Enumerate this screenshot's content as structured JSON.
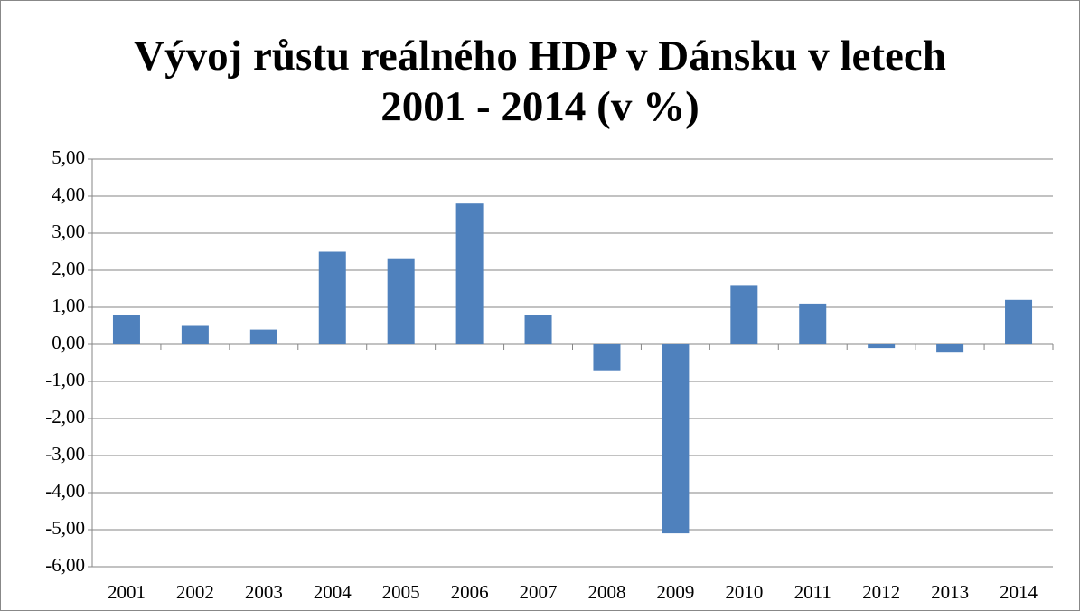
{
  "chart_data": {
    "type": "bar",
    "title": "Vývoj růstu reálného HDP v Dánsku v letech 2001 - 2014 (v %)",
    "categories": [
      "2001",
      "2002",
      "2003",
      "2004",
      "2005",
      "2006",
      "2007",
      "2008",
      "2009",
      "2010",
      "2011",
      "2012",
      "2013",
      "2014"
    ],
    "values": [
      0.8,
      0.5,
      0.4,
      2.5,
      2.3,
      3.8,
      0.8,
      -0.7,
      -5.1,
      1.6,
      1.1,
      -0.1,
      -0.2,
      1.2
    ],
    "color": "#4f81bd",
    "ylim": [
      -6,
      5
    ],
    "yticks": [
      {
        "value": -6,
        "label": "-6,00"
      },
      {
        "value": -5,
        "label": "-5,00"
      },
      {
        "value": -4,
        "label": "-4,00"
      },
      {
        "value": -3,
        "label": "-3,00"
      },
      {
        "value": -2,
        "label": "-2,00"
      },
      {
        "value": -1,
        "label": "-1,00"
      },
      {
        "value": 0,
        "label": "0,00"
      },
      {
        "value": 1,
        "label": "1,00"
      },
      {
        "value": 2,
        "label": "2,00"
      },
      {
        "value": 3,
        "label": "3,00"
      },
      {
        "value": 4,
        "label": "4,00"
      },
      {
        "value": 5,
        "label": "5,00"
      }
    ],
    "grid": true
  }
}
